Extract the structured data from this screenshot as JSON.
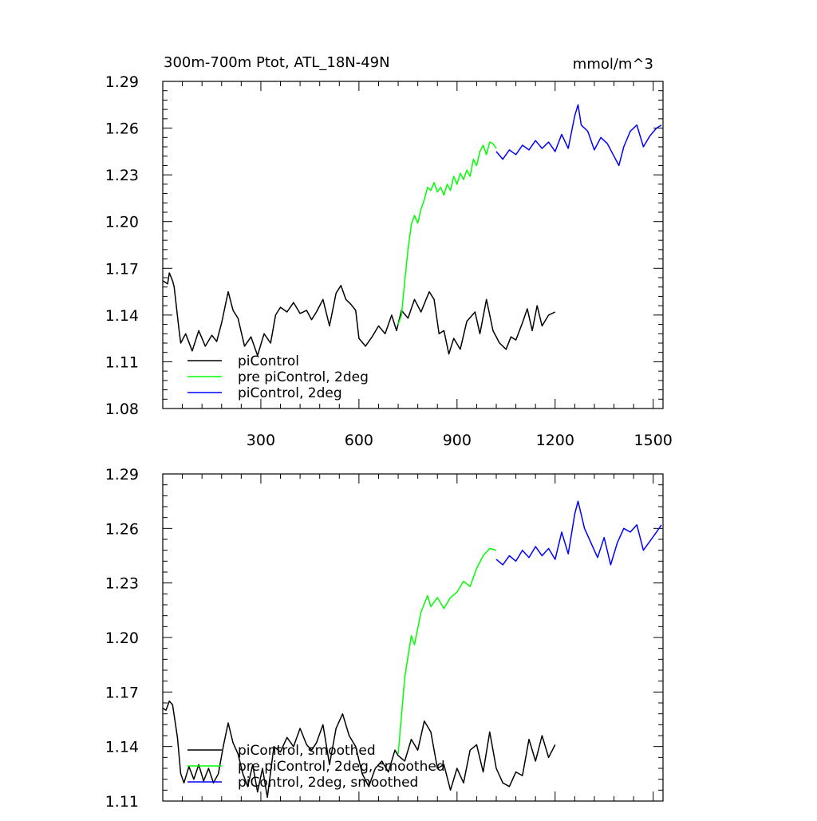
{
  "chart_data": [
    {
      "type": "line",
      "title": "300m-700m Ptot, ATL_18N-49N",
      "units": "mmol/m^3",
      "xticks": [
        300,
        600,
        900,
        1200,
        1500
      ],
      "yticks": [
        "1.08",
        "1.11",
        "1.14",
        "1.17",
        "1.20",
        "1.23",
        "1.26",
        "1.29"
      ],
      "xlim": [
        0,
        1530
      ],
      "ylim": [
        1.08,
        1.29
      ],
      "legend": [
        {
          "name": "piControl",
          "color": "#000000"
        },
        {
          "name": "pre piControl, 2deg",
          "color": "#00ff00"
        },
        {
          "name": "piControl, 2deg",
          "color": "#0000ff"
        }
      ],
      "series": [
        {
          "name": "piControl",
          "color": "#000000",
          "x": [
            0,
            15,
            20,
            30,
            35,
            50,
            55,
            70,
            90,
            110,
            130,
            150,
            165,
            180,
            200,
            215,
            230,
            250,
            270,
            290,
            310,
            330,
            345,
            360,
            380,
            400,
            420,
            440,
            455,
            470,
            490,
            510,
            530,
            545,
            560,
            575,
            590,
            600,
            620,
            640,
            660,
            680,
            700,
            715,
            730,
            750,
            770,
            790,
            815,
            830,
            845,
            860,
            875,
            890,
            910,
            930,
            955,
            970,
            990,
            1010,
            1030,
            1050,
            1065,
            1080,
            1100,
            1115,
            1130,
            1145,
            1160,
            1180,
            1200
          ],
          "values": [
            1.162,
            1.16,
            1.167,
            1.162,
            1.158,
            1.13,
            1.122,
            1.128,
            1.117,
            1.13,
            1.12,
            1.127,
            1.123,
            1.135,
            1.155,
            1.143,
            1.138,
            1.12,
            1.126,
            1.114,
            1.128,
            1.122,
            1.14,
            1.145,
            1.142,
            1.148,
            1.141,
            1.143,
            1.137,
            1.142,
            1.15,
            1.133,
            1.154,
            1.159,
            1.15,
            1.147,
            1.143,
            1.125,
            1.12,
            1.126,
            1.133,
            1.128,
            1.14,
            1.13,
            1.143,
            1.138,
            1.15,
            1.142,
            1.155,
            1.15,
            1.128,
            1.13,
            1.115,
            1.125,
            1.118,
            1.136,
            1.142,
            1.128,
            1.15,
            1.13,
            1.122,
            1.118,
            1.126,
            1.124,
            1.135,
            1.144,
            1.13,
            1.146,
            1.133,
            1.14,
            1.142
          ]
        },
        {
          "name": "pre piControl, 2deg",
          "color": "#00ff00",
          "x": [
            720,
            730,
            740,
            750,
            760,
            770,
            780,
            790,
            800,
            810,
            820,
            830,
            840,
            850,
            860,
            870,
            880,
            890,
            900,
            910,
            920,
            930,
            940,
            950,
            960,
            970,
            980,
            990,
            1000,
            1010,
            1020
          ],
          "values": [
            1.134,
            1.14,
            1.162,
            1.182,
            1.198,
            1.204,
            1.199,
            1.208,
            1.214,
            1.222,
            1.22,
            1.225,
            1.219,
            1.222,
            1.217,
            1.224,
            1.22,
            1.229,
            1.224,
            1.231,
            1.227,
            1.233,
            1.229,
            1.24,
            1.236,
            1.245,
            1.249,
            1.243,
            1.251,
            1.25,
            1.247
          ]
        },
        {
          "name": "piControl, 2deg",
          "color": "#0000ff",
          "x": [
            1020,
            1040,
            1060,
            1080,
            1100,
            1120,
            1140,
            1160,
            1180,
            1200,
            1220,
            1240,
            1260,
            1270,
            1280,
            1300,
            1320,
            1340,
            1360,
            1380,
            1395,
            1410,
            1430,
            1450,
            1470,
            1490,
            1510,
            1525
          ],
          "values": [
            1.245,
            1.24,
            1.246,
            1.243,
            1.249,
            1.246,
            1.252,
            1.247,
            1.251,
            1.245,
            1.256,
            1.247,
            1.268,
            1.275,
            1.262,
            1.258,
            1.246,
            1.254,
            1.25,
            1.242,
            1.236,
            1.248,
            1.258,
            1.262,
            1.248,
            1.255,
            1.26,
            1.262
          ]
        }
      ]
    },
    {
      "type": "line",
      "yticks": [
        "1.11",
        "1.14",
        "1.17",
        "1.20",
        "1.23",
        "1.26",
        "1.29"
      ],
      "xlim": [
        0,
        1530
      ],
      "ylim": [
        1.11,
        1.29
      ],
      "legend": [
        {
          "name": "piControl, smoothed",
          "color": "#000000"
        },
        {
          "name": "pre piControl, 2deg, smoothed",
          "color": "#00ff00"
        },
        {
          "name": "piControl, 2deg, smoothed",
          "color": "#0000ff"
        }
      ],
      "series": [
        {
          "name": "piControl, smoothed",
          "color": "#000000",
          "x": [
            0,
            10,
            20,
            30,
            45,
            55,
            65,
            80,
            95,
            110,
            125,
            140,
            155,
            170,
            185,
            200,
            215,
            230,
            245,
            260,
            275,
            290,
            305,
            320,
            340,
            360,
            380,
            400,
            420,
            440,
            455,
            470,
            490,
            510,
            530,
            550,
            570,
            590,
            610,
            630,
            650,
            670,
            690,
            710,
            720,
            740,
            760,
            780,
            800,
            820,
            840,
            860,
            880,
            900,
            920,
            940,
            960,
            980,
            1000,
            1020,
            1040,
            1060,
            1080,
            1100,
            1120,
            1140,
            1160,
            1180,
            1200
          ],
          "values": [
            1.161,
            1.16,
            1.165,
            1.163,
            1.145,
            1.125,
            1.12,
            1.129,
            1.122,
            1.13,
            1.121,
            1.128,
            1.12,
            1.125,
            1.14,
            1.153,
            1.142,
            1.136,
            1.125,
            1.118,
            1.13,
            1.115,
            1.128,
            1.112,
            1.14,
            1.137,
            1.145,
            1.14,
            1.15,
            1.141,
            1.138,
            1.142,
            1.152,
            1.13,
            1.15,
            1.158,
            1.146,
            1.14,
            1.125,
            1.118,
            1.128,
            1.132,
            1.126,
            1.138,
            1.135,
            1.132,
            1.144,
            1.138,
            1.154,
            1.148,
            1.128,
            1.13,
            1.116,
            1.128,
            1.12,
            1.138,
            1.141,
            1.126,
            1.148,
            1.128,
            1.12,
            1.118,
            1.126,
            1.124,
            1.144,
            1.132,
            1.146,
            1.134,
            1.141
          ]
        },
        {
          "name": "pre piControl, 2deg, smoothed",
          "color": "#00ff00",
          "x": [
            720,
            740,
            760,
            770,
            790,
            810,
            820,
            840,
            860,
            880,
            900,
            920,
            940,
            960,
            980,
            1000,
            1020
          ],
          "values": [
            1.136,
            1.178,
            1.201,
            1.196,
            1.214,
            1.223,
            1.217,
            1.222,
            1.216,
            1.222,
            1.225,
            1.231,
            1.228,
            1.238,
            1.245,
            1.249,
            1.248
          ]
        },
        {
          "name": "piControl, 2deg, smoothed",
          "color": "#0000ff",
          "x": [
            1020,
            1040,
            1060,
            1080,
            1100,
            1120,
            1140,
            1160,
            1180,
            1200,
            1220,
            1240,
            1260,
            1270,
            1290,
            1310,
            1330,
            1350,
            1370,
            1390,
            1410,
            1430,
            1450,
            1470,
            1490,
            1510,
            1525
          ],
          "values": [
            1.243,
            1.24,
            1.245,
            1.242,
            1.248,
            1.244,
            1.25,
            1.245,
            1.249,
            1.243,
            1.258,
            1.246,
            1.268,
            1.275,
            1.26,
            1.252,
            1.244,
            1.255,
            1.24,
            1.252,
            1.26,
            1.258,
            1.262,
            1.248,
            1.253,
            1.258,
            1.262
          ]
        }
      ]
    }
  ]
}
